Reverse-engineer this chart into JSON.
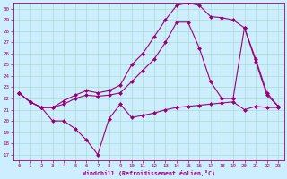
{
  "xlabel": "Windchill (Refroidissement éolien,°C)",
  "bg_color": "#cceeff",
  "grid_color": "#aaddcc",
  "line_color": "#990077",
  "xlim": [
    -0.5,
    23.5
  ],
  "ylim": [
    16.5,
    30.5
  ],
  "xticks": [
    0,
    1,
    2,
    3,
    4,
    5,
    6,
    7,
    8,
    9,
    10,
    11,
    12,
    13,
    14,
    15,
    16,
    17,
    18,
    19,
    20,
    21,
    22,
    23
  ],
  "yticks": [
    17,
    18,
    19,
    20,
    21,
    22,
    23,
    24,
    25,
    26,
    27,
    28,
    29,
    30
  ],
  "line1_x": [
    0,
    1,
    2,
    3,
    4,
    5,
    6,
    7,
    8,
    9,
    10,
    11,
    12,
    13,
    14,
    15,
    16,
    17,
    18,
    19,
    20,
    21,
    22,
    23
  ],
  "line1_y": [
    22.5,
    21.7,
    21.2,
    20.0,
    20.0,
    19.3,
    18.3,
    17.0,
    20.2,
    21.5,
    20.3,
    20.5,
    20.7,
    21.0,
    21.2,
    21.3,
    21.4,
    21.5,
    21.6,
    21.7,
    21.0,
    21.3,
    21.2,
    21.2
  ],
  "line2_x": [
    0,
    1,
    2,
    3,
    4,
    5,
    6,
    7,
    8,
    9,
    10,
    11,
    12,
    13,
    14,
    15,
    16,
    17,
    18,
    19,
    20,
    21,
    22,
    23
  ],
  "line2_y": [
    22.5,
    21.7,
    21.2,
    21.2,
    21.5,
    22.0,
    22.3,
    22.2,
    22.3,
    22.5,
    23.5,
    24.5,
    25.5,
    27.0,
    28.8,
    28.8,
    26.5,
    23.5,
    22.0,
    22.0,
    28.3,
    25.3,
    22.3,
    21.3
  ],
  "line3_x": [
    0,
    1,
    2,
    3,
    4,
    5,
    6,
    7,
    8,
    9,
    10,
    11,
    12,
    13,
    14,
    15,
    16,
    17,
    18,
    19,
    20,
    21,
    22,
    23
  ],
  "line3_y": [
    22.5,
    21.7,
    21.2,
    21.2,
    21.8,
    22.3,
    22.7,
    22.5,
    22.7,
    23.2,
    25.0,
    26.0,
    27.5,
    29.0,
    30.3,
    30.5,
    30.3,
    29.3,
    29.2,
    29.0,
    28.3,
    25.5,
    22.5,
    21.3
  ]
}
